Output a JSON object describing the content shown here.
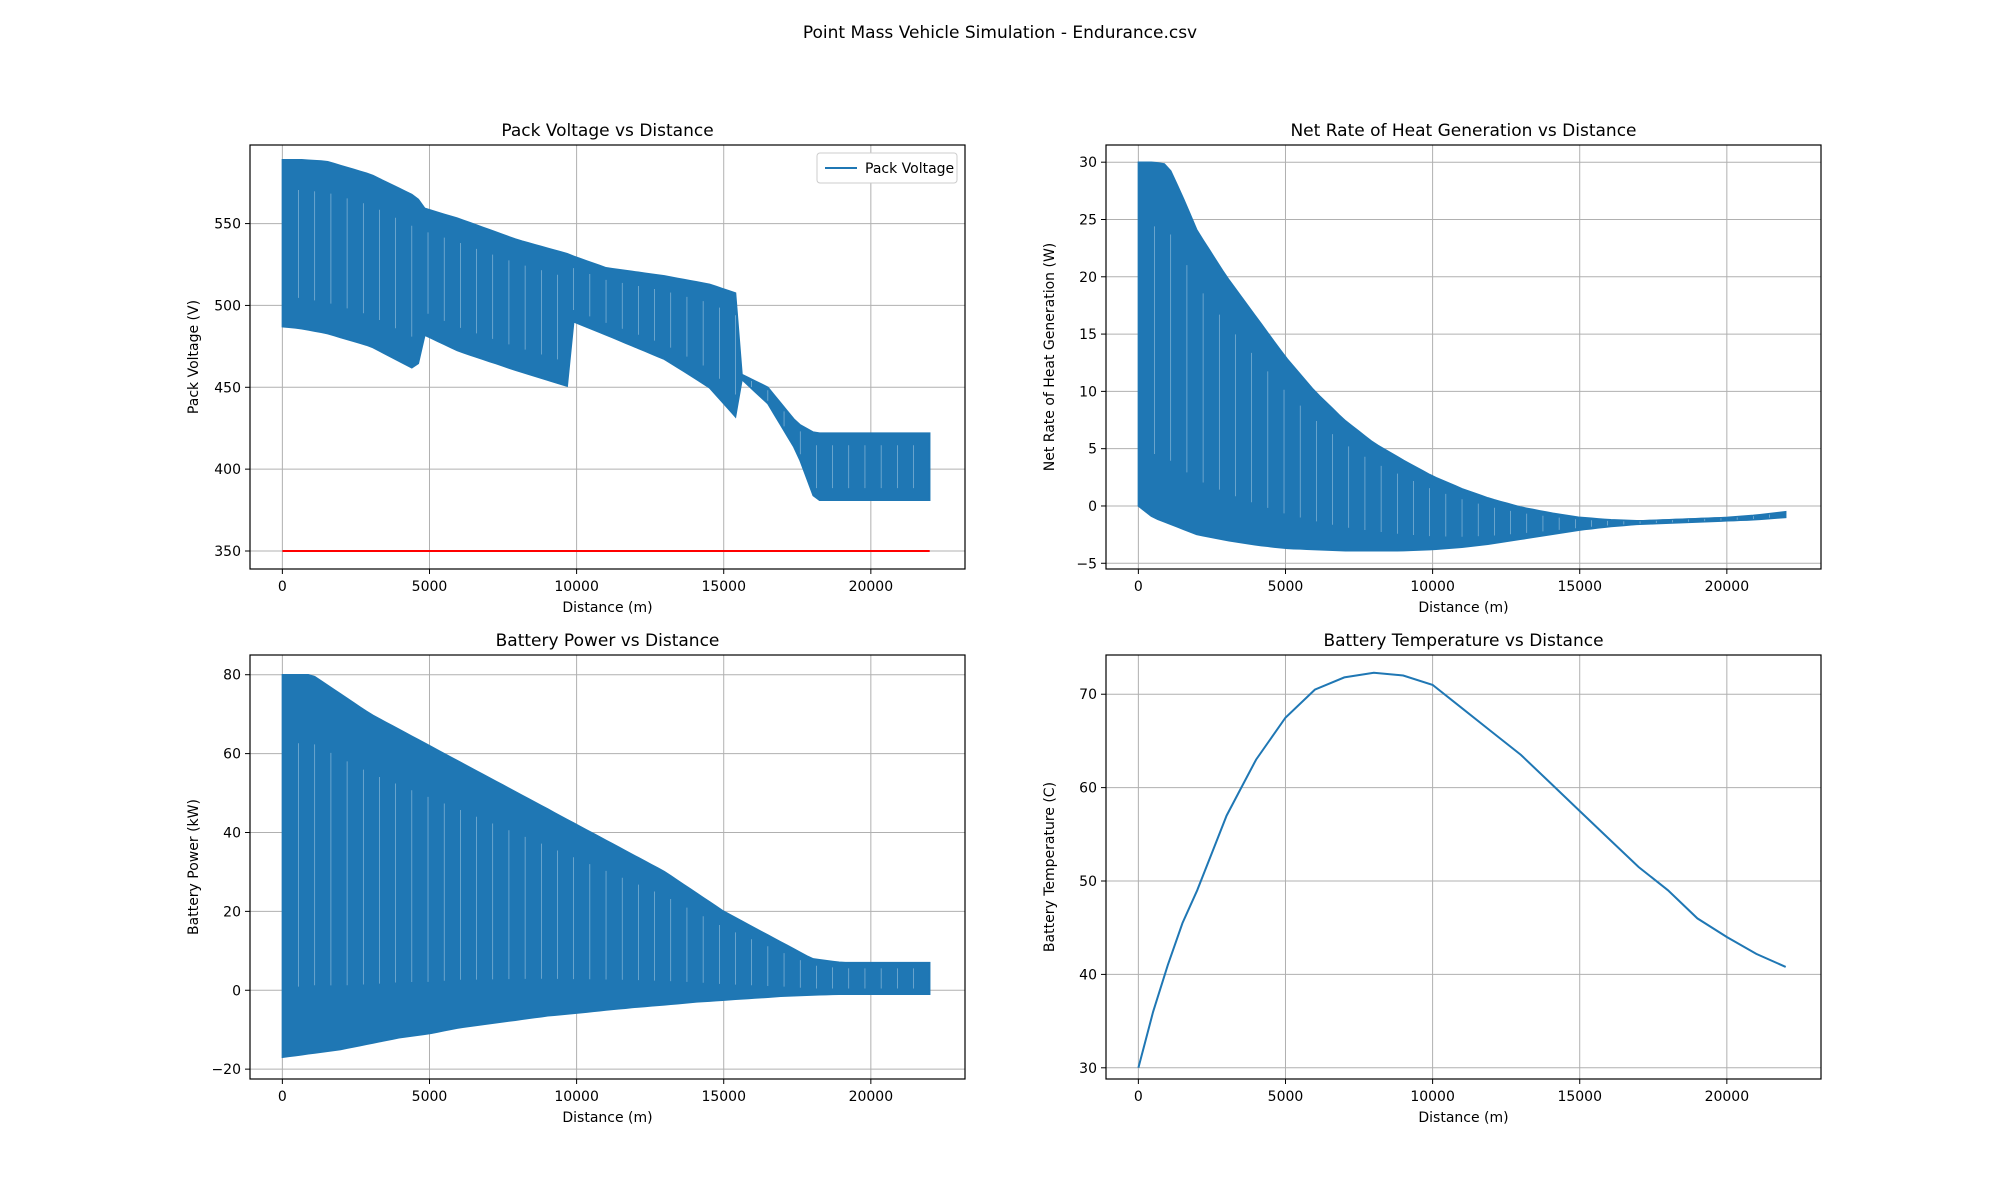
{
  "figure": {
    "title": "Point Mass Vehicle Simulation - Endurance.csv"
  },
  "chart_data": [
    {
      "type": "line",
      "style": "dense-oscillation",
      "title": "Pack Voltage vs Distance",
      "xlabel": "Distance (m)",
      "ylabel": "Pack Voltage (V)",
      "xlim": [
        -1100,
        23200
      ],
      "ylim": [
        339,
        598
      ],
      "xticks": [
        0,
        5000,
        10000,
        15000,
        20000
      ],
      "yticks": [
        350,
        400,
        450,
        500,
        550
      ],
      "grid": true,
      "legend": {
        "placement": "top-right",
        "entries": [
          "Pack Voltage"
        ]
      },
      "series": [
        {
          "name": "Pack Voltage",
          "color": "#1f77b4",
          "x": [
            0,
            600,
            1500,
            3000,
            4600,
            4700,
            6000,
            8000,
            9800,
            9900,
            11000,
            13000,
            14500,
            15500,
            15600,
            16500,
            17500,
            18100,
            20000,
            22000
          ],
          "upper": [
            589,
            589,
            588,
            580,
            566,
            560,
            553,
            540,
            531,
            530,
            523,
            518,
            513,
            507,
            458,
            450,
            428,
            422,
            422,
            422
          ],
          "lower": [
            487,
            486,
            483,
            475,
            460,
            483,
            472,
            460,
            450,
            490,
            482,
            467,
            450,
            430,
            455,
            440,
            410,
            381,
            381,
            381
          ]
        },
        {
          "name": "",
          "color": "#ff0000",
          "x": [
            0,
            22000
          ],
          "y": [
            350,
            350
          ]
        }
      ]
    },
    {
      "type": "line",
      "style": "dense-oscillation",
      "title": "Net Rate of Heat Generation vs Distance",
      "xlabel": "Distance (m)",
      "ylabel": "Net Rate of Heat Generation (W)",
      "xlim": [
        -1100,
        23200
      ],
      "ylim": [
        -5.5,
        31.5
      ],
      "xticks": [
        0,
        5000,
        10000,
        15000,
        20000
      ],
      "yticks": [
        -5,
        0,
        5,
        10,
        15,
        20,
        25,
        30
      ],
      "grid": true,
      "series": [
        {
          "name": "",
          "color": "#1f77b4",
          "x": [
            0,
            500,
            1000,
            1500,
            2000,
            3000,
            4000,
            5000,
            6000,
            7000,
            8000,
            9000,
            10000,
            11000,
            12000,
            13000,
            14000,
            15000,
            16000,
            17000,
            18000,
            19000,
            20000,
            21000,
            22000
          ],
          "upper": [
            30,
            30,
            29.8,
            27,
            24,
            20,
            16.5,
            13,
            10,
            7.5,
            5.5,
            4,
            2.6,
            1.5,
            0.6,
            -0.1,
            -0.6,
            -1,
            -1.2,
            -1.3,
            -1.2,
            -1.1,
            -1,
            -0.8,
            -0.5
          ],
          "lower": [
            0,
            -1,
            -1.5,
            -2,
            -2.5,
            -3,
            -3.4,
            -3.7,
            -3.8,
            -3.9,
            -3.9,
            -3.9,
            -3.8,
            -3.6,
            -3.3,
            -2.9,
            -2.5,
            -2.1,
            -1.8,
            -1.6,
            -1.5,
            -1.4,
            -1.3,
            -1.2,
            -1
          ]
        }
      ]
    },
    {
      "type": "line",
      "style": "dense-oscillation",
      "title": "Battery Power vs Distance",
      "xlabel": "Distance (m)",
      "ylabel": "Battery Power (kW)",
      "xlim": [
        -1100,
        23200
      ],
      "ylim": [
        -22.5,
        85
      ],
      "xticks": [
        0,
        5000,
        10000,
        15000,
        20000
      ],
      "yticks": [
        -20,
        0,
        20,
        40,
        60,
        80
      ],
      "grid": true,
      "series": [
        {
          "name": "",
          "color": "#1f77b4",
          "x": [
            0,
            1000,
            2000,
            3000,
            4000,
            5000,
            6000,
            7000,
            8000,
            9000,
            10000,
            11000,
            12000,
            13000,
            14000,
            15000,
            16000,
            17000,
            18000,
            19000,
            20000,
            22000
          ],
          "upper": [
            80,
            80,
            75,
            70,
            66,
            62,
            58,
            54,
            50,
            46,
            42,
            38,
            34,
            30,
            25,
            20,
            16,
            12,
            8,
            7,
            7,
            7
          ],
          "lower": [
            -17,
            -16,
            -15,
            -13.5,
            -12,
            -11,
            -9.5,
            -8.5,
            -7.5,
            -6.5,
            -5.8,
            -5,
            -4.3,
            -3.7,
            -3,
            -2.5,
            -2,
            -1.5,
            -1.2,
            -1,
            -1,
            -1
          ]
        }
      ]
    },
    {
      "type": "line",
      "title": "Battery Temperature vs Distance",
      "xlabel": "Distance (m)",
      "ylabel": "Battery Temperature (C)",
      "xlim": [
        -1100,
        23200
      ],
      "ylim": [
        28.8,
        74.2
      ],
      "xticks": [
        0,
        5000,
        10000,
        15000,
        20000
      ],
      "yticks": [
        30,
        40,
        50,
        60,
        70
      ],
      "grid": true,
      "series": [
        {
          "name": "",
          "color": "#1f77b4",
          "x": [
            0,
            500,
            1000,
            1500,
            2000,
            2500,
            3000,
            3500,
            4000,
            5000,
            6000,
            7000,
            8000,
            9000,
            10000,
            11000,
            12000,
            13000,
            14000,
            15000,
            16000,
            17000,
            18000,
            19000,
            20000,
            21000,
            22000
          ],
          "y": [
            30,
            36,
            41,
            45.5,
            49,
            53,
            57,
            60,
            63,
            67.5,
            70.5,
            71.8,
            72.3,
            72,
            71,
            68.5,
            66,
            63.5,
            60.5,
            57.5,
            54.5,
            51.5,
            49,
            46,
            44,
            42.2,
            40.8
          ]
        }
      ]
    }
  ]
}
